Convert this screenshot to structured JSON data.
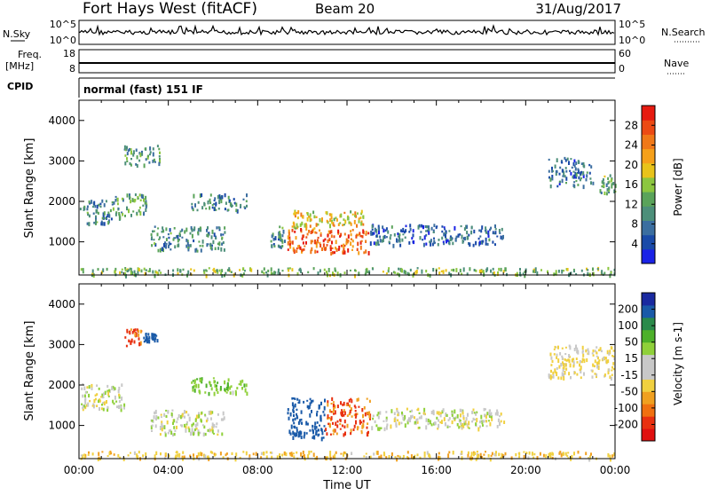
{
  "header": {
    "station": "Fort Hays West (fitACF)",
    "beam": "Beam 20",
    "date": "31/Aug/2017"
  },
  "noise_panel": {
    "left_label": "N.Sky",
    "left_ticks": [
      "10^5",
      "10^0"
    ],
    "right_label": "N.Search",
    "right_ticks": [
      "10^5",
      "10^0"
    ]
  },
  "freq_panel": {
    "left_label_line1": "Freq.",
    "left_label_line2": "[MHz]",
    "left_ticks": [
      "18",
      "8"
    ],
    "right_label": "Nave",
    "right_ticks": [
      "60",
      "0"
    ]
  },
  "cpid_panel": {
    "label": "CPID",
    "text": "normal (fast) 151 IF"
  },
  "axes": {
    "ylabel": "Slant Range [km]",
    "yticks": [
      "1000",
      "2000",
      "3000",
      "4000"
    ],
    "xlabel": "Time UT",
    "xticks": [
      "00:00",
      "04:00",
      "08:00",
      "12:00",
      "16:00",
      "20:00",
      "00:00"
    ]
  },
  "power_scale": {
    "label": "Power [dB]",
    "ticks": [
      "4",
      "8",
      "12",
      "16",
      "20",
      "24",
      "28"
    ],
    "colors": [
      "#1a22e6",
      "#1a4aa8",
      "#3b6ea0",
      "#4d8f7a",
      "#5aa35a",
      "#8cc63f",
      "#e8c31a",
      "#f5a01a",
      "#f07818",
      "#ec4a14",
      "#e61a10"
    ]
  },
  "velocity_scale": {
    "label": "Velocity [m s-1]",
    "ticks": [
      "200",
      "100",
      "50",
      "15",
      "-15",
      "-50",
      "-100",
      "-200"
    ],
    "colors": [
      "#1a2aa0",
      "#1a5aa8",
      "#2a8a4a",
      "#4db02a",
      "#8fd03a",
      "#c8c8c8",
      "#c8c8c8",
      "#f0d040",
      "#f0a020",
      "#f07010",
      "#e83010",
      "#e01010"
    ]
  },
  "chart_data": {
    "type": "heatmap",
    "x_range": [
      "00:00",
      "00:00"
    ],
    "ylim": [
      180,
      4500
    ],
    "power_blobs": [
      {
        "t0": 0.0,
        "t1": 1.5,
        "r0": 1450,
        "r1": 2050,
        "value": 10
      },
      {
        "t0": 1.5,
        "t1": 3.0,
        "r0": 1600,
        "r1": 2200,
        "value": 12
      },
      {
        "t0": 2.0,
        "t1": 3.6,
        "r0": 2900,
        "r1": 3400,
        "value": 12
      },
      {
        "t0": 3.2,
        "t1": 6.5,
        "r0": 800,
        "r1": 1400,
        "value": 10
      },
      {
        "t0": 5.0,
        "t1": 7.5,
        "r0": 1800,
        "r1": 2200,
        "value": 9
      },
      {
        "t0": 8.5,
        "t1": 9.3,
        "r0": 900,
        "r1": 1400,
        "value": 10
      },
      {
        "t0": 9.3,
        "t1": 13.0,
        "r0": 750,
        "r1": 1350,
        "value": 26
      },
      {
        "t0": 9.5,
        "t1": 12.8,
        "r0": 1350,
        "r1": 1800,
        "value": 19
      },
      {
        "t0": 13.0,
        "t1": 19.0,
        "r0": 950,
        "r1": 1450,
        "value": 7
      },
      {
        "t0": 21.0,
        "t1": 23.0,
        "r0": 2400,
        "r1": 3100,
        "value": 8
      },
      {
        "t0": 23.3,
        "t1": 24.0,
        "r0": 2200,
        "r1": 2700,
        "value": 13
      },
      {
        "t0": 0.0,
        "t1": 24.0,
        "r0": 200,
        "r1": 380,
        "value": 14
      }
    ],
    "velocity_blobs": [
      {
        "t0": 0.0,
        "t1": 2.0,
        "r0": 1400,
        "r1": 2050,
        "value": 0
      },
      {
        "t0": 2.0,
        "t1": 2.8,
        "r0": 2950,
        "r1": 3400,
        "value": -120
      },
      {
        "t0": 2.8,
        "t1": 3.5,
        "r0": 3100,
        "r1": 3300,
        "value": 150
      },
      {
        "t0": 3.2,
        "t1": 6.5,
        "r0": 800,
        "r1": 1400,
        "value": 0
      },
      {
        "t0": 5.0,
        "t1": 7.5,
        "r0": 1800,
        "r1": 2200,
        "value": 40
      },
      {
        "t0": 9.3,
        "t1": 11.0,
        "r0": 700,
        "r1": 1700,
        "value": 150
      },
      {
        "t0": 11.0,
        "t1": 13.0,
        "r0": 800,
        "r1": 1700,
        "value": -100
      },
      {
        "t0": 13.0,
        "t1": 19.0,
        "r0": 950,
        "r1": 1450,
        "value": 0
      },
      {
        "t0": 21.0,
        "t1": 24.0,
        "r0": 2200,
        "r1": 3000,
        "value": -20
      },
      {
        "t0": 0.0,
        "t1": 24.0,
        "r0": 200,
        "r1": 380,
        "value": -40
      }
    ]
  }
}
